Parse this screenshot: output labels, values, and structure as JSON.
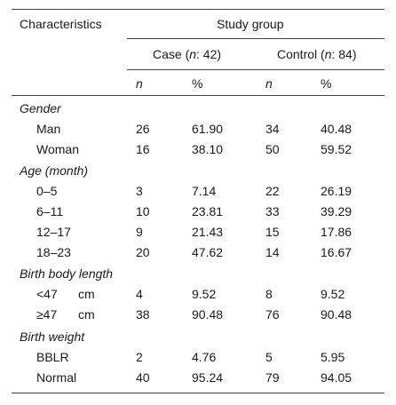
{
  "header": {
    "characteristics": "Characteristics",
    "study_group": "Study group",
    "case_prefix": "Case (",
    "case_n": "n",
    "case_suffix": ": 42)",
    "control_prefix": "Control (",
    "control_n": "n",
    "control_suffix": ": 84)",
    "n_label": "n",
    "pct_label": "%"
  },
  "sections": [
    {
      "title": "Gender",
      "rows": [
        {
          "label": "Man",
          "case_n": "26",
          "case_pct": "61.90",
          "ctrl_n": "34",
          "ctrl_pct": "40.48"
        },
        {
          "label": "Woman",
          "case_n": "16",
          "case_pct": "38.10",
          "ctrl_n": "50",
          "ctrl_pct": "59.52"
        }
      ]
    },
    {
      "title": "Age (month)",
      "rows": [
        {
          "label": "0–5",
          "case_n": "3",
          "case_pct": "7.14",
          "ctrl_n": "22",
          "ctrl_pct": "26.19"
        },
        {
          "label": "6–11",
          "case_n": "10",
          "case_pct": "23.81",
          "ctrl_n": "33",
          "ctrl_pct": "39.29"
        },
        {
          "label": "12–17",
          "case_n": "9",
          "case_pct": "21.43",
          "ctrl_n": "15",
          "ctrl_pct": "17.86"
        },
        {
          "label": "18–23",
          "case_n": "20",
          "case_pct": "47.62",
          "ctrl_n": "14",
          "ctrl_pct": "16.67"
        }
      ]
    },
    {
      "title": "Birth body length",
      "rows": [
        {
          "label": "<47",
          "unit": "cm",
          "case_n": "4",
          "case_pct": "9.52",
          "ctrl_n": "8",
          "ctrl_pct": "9.52"
        },
        {
          "label": "≥47",
          "unit": "cm",
          "case_n": "38",
          "case_pct": "90.48",
          "ctrl_n": "76",
          "ctrl_pct": "90.48"
        }
      ]
    },
    {
      "title": "Birth weight",
      "rows": [
        {
          "label": "BBLR",
          "case_n": "2",
          "case_pct": "4.76",
          "ctrl_n": "5",
          "ctrl_pct": "5.95"
        },
        {
          "label": "Normal",
          "case_n": "40",
          "case_pct": "95.24",
          "ctrl_n": "79",
          "ctrl_pct": "94.05"
        }
      ]
    }
  ]
}
